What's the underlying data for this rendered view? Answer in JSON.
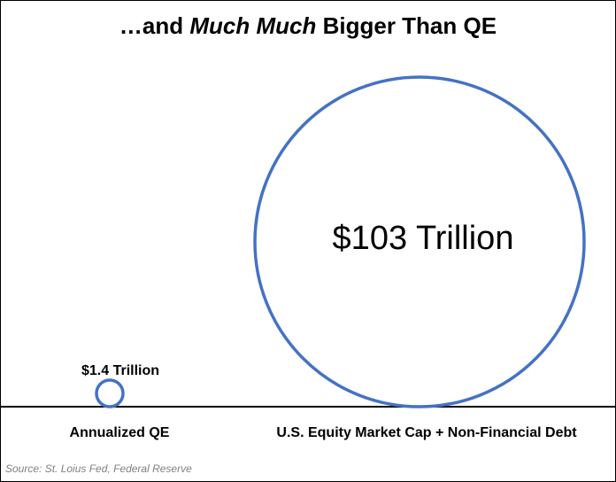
{
  "chart_data": {
    "type": "bubble",
    "title": {
      "prefix": "…and ",
      "emphasis": "Much Much",
      "suffix": " Bigger Than QE"
    },
    "series": [
      {
        "category": "Annualized QE",
        "value": 1.4,
        "unit": "Trillion",
        "label": "$1.4 Trillion"
      },
      {
        "category": "U.S. Equity Market Cap + Non-Financial Debt",
        "value": 103,
        "unit": "Trillion",
        "label": "$103 Trillion"
      }
    ],
    "colors": {
      "circle_stroke": "#4472C4",
      "baseline": "#000000",
      "source_text": "#808080"
    },
    "source": "Source: St. Loius Fed, Federal Reserve"
  }
}
